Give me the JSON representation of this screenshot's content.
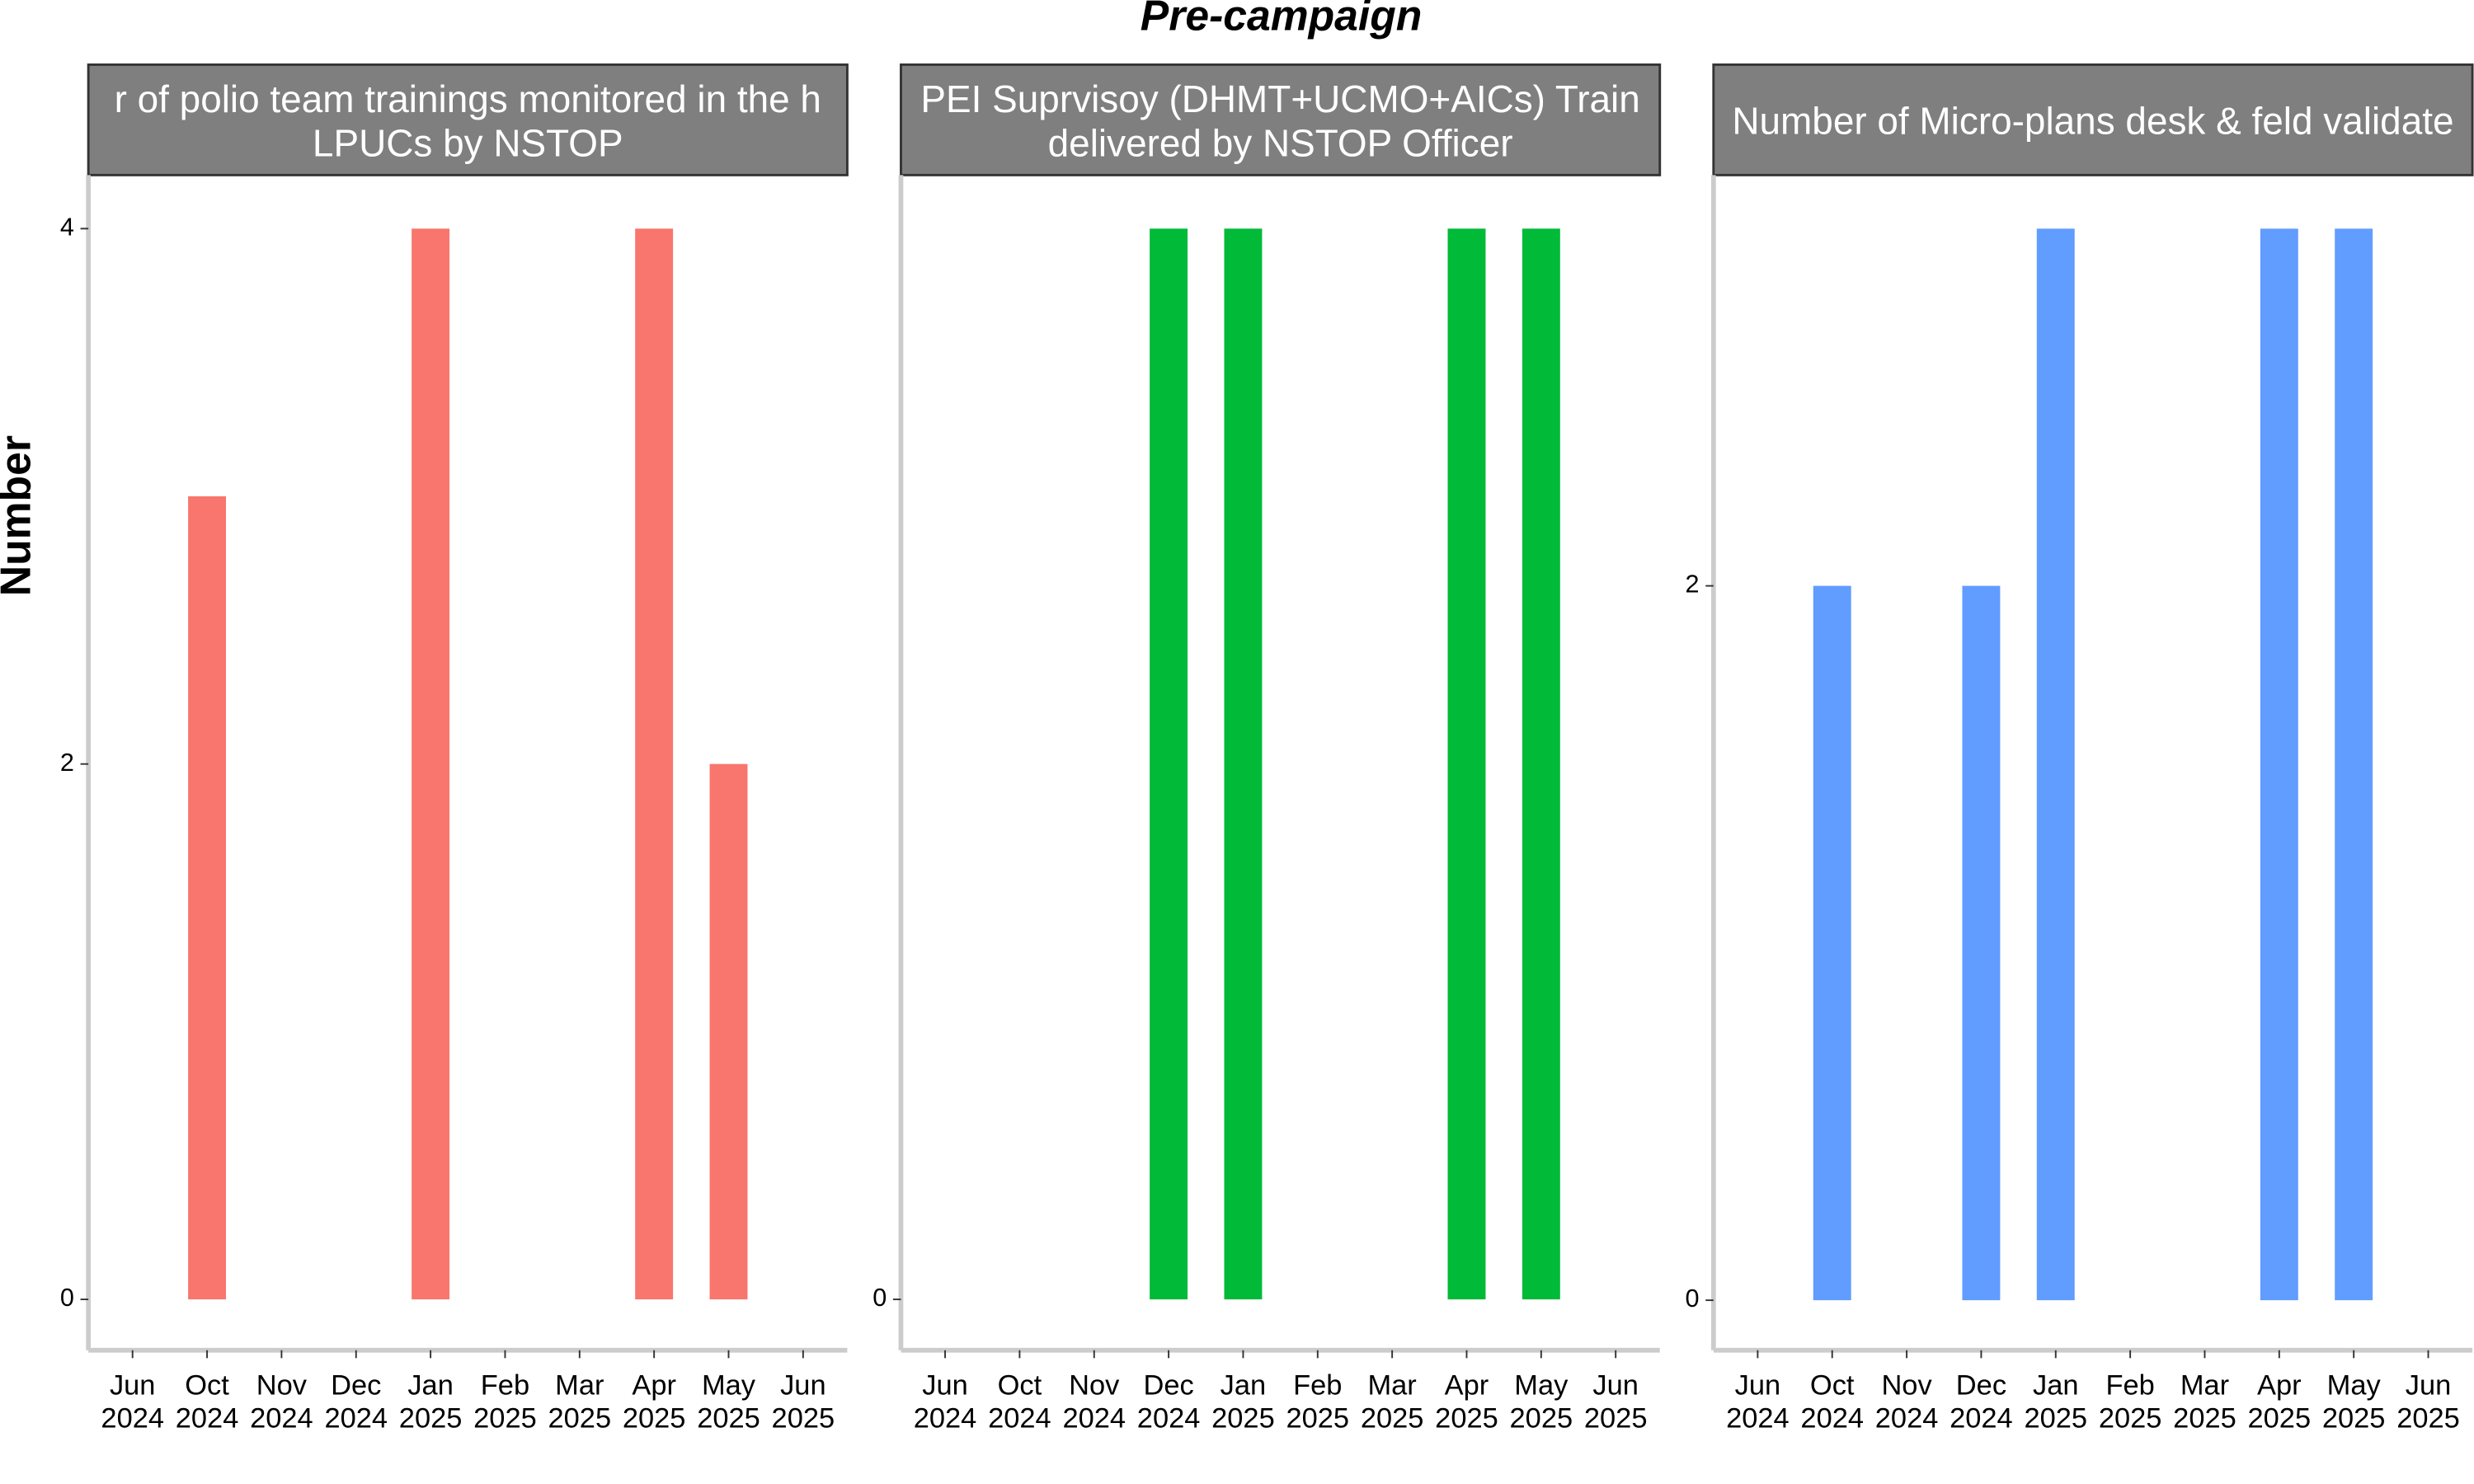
{
  "title": "Pre-campaign",
  "y_label": "Number",
  "chart_data": [
    {
      "type": "bar",
      "title": "r of polio team trainings monitored in the h\nLPUCs by NSTOP",
      "categories": [
        "Jun 2024",
        "Oct 2024",
        "Nov 2024",
        "Dec 2024",
        "Jan 2025",
        "Feb 2025",
        "Mar 2025",
        "Apr 2025",
        "May 2025",
        "Jun 2025"
      ],
      "values": [
        null,
        3,
        null,
        null,
        4,
        null,
        null,
        4,
        2,
        null
      ],
      "color": "#f8766d",
      "ylim": [
        -0.19,
        4.2
      ],
      "yticks": [
        0,
        2,
        4
      ]
    },
    {
      "type": "bar",
      "title": "PEI Suprvisoy (DHMT+UCMO+AICs) Train\ndelivered by NSTOP Officer",
      "categories": [
        "Jun 2024",
        "Oct 2024",
        "Nov 2024",
        "Dec 2024",
        "Jan 2025",
        "Feb 2025",
        "Mar 2025",
        "Apr 2025",
        "May 2025",
        "Jun 2025"
      ],
      "values": [
        null,
        null,
        null,
        4,
        4,
        null,
        null,
        4,
        4,
        null
      ],
      "color": "#00ba38",
      "ylim": [
        -0.19,
        4.2
      ],
      "yticks": [
        0
      ]
    },
    {
      "type": "bar",
      "title": "Number of Micro-plans desk & feld validate",
      "categories": [
        "Jun 2024",
        "Oct 2024",
        "Nov 2024",
        "Dec 2024",
        "Jan 2025",
        "Feb 2025",
        "Mar 2025",
        "Apr 2025",
        "May 2025",
        "Jun 2025"
      ],
      "values": [
        null,
        2,
        null,
        2,
        3,
        null,
        null,
        3,
        3,
        null
      ],
      "color": "#619cff",
      "ylim": [
        -0.14,
        3.15
      ],
      "yticks": [
        0,
        2
      ]
    }
  ]
}
